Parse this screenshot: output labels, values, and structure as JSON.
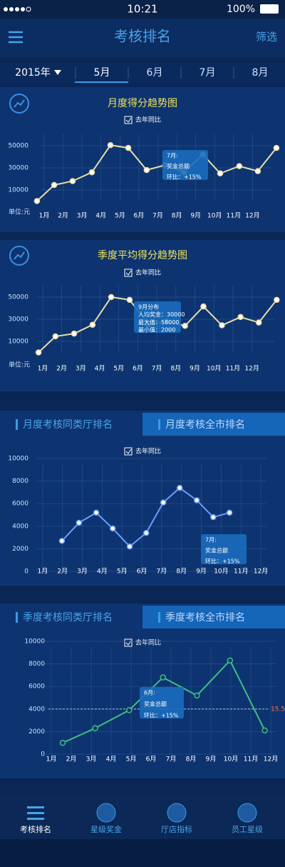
{
  "status_bar": {
    "time": "10:21",
    "battery": "100%"
  },
  "header": {
    "title": "考核排名",
    "action": "筛选"
  },
  "period_tabs": {
    "year": "2015年",
    "months": [
      "5月",
      "6月",
      "7月",
      "8月"
    ]
  },
  "sections": [
    {
      "tabs": [
        "月度考核同类厅排名",
        "月度考核全市排名"
      ]
    },
    {
      "tabs": [
        "季度考核同类厅排名",
        "季度考核全市排名"
      ]
    }
  ],
  "bottom_nav": [
    "考核排名",
    "星级奖金",
    "厅店指标",
    "员工星级"
  ],
  "chart_data": [
    {
      "type": "line",
      "title": "月度得分趋势图",
      "legend": "去年同比",
      "unit": "单位:元",
      "color": "#e9dea6",
      "x": [
        0.62,
        1.53,
        2.5,
        3.52,
        4.5,
        5.44,
        6.41,
        7.39,
        8.37,
        9.38,
        10.29,
        11.3,
        12.28,
        13.26
      ],
      "values": [
        0,
        14500,
        18000,
        26000,
        50500,
        48000,
        28000,
        32500,
        26000,
        42000,
        25000,
        31500,
        27000,
        48000
      ],
      "xlim": [
        0.5,
        13.3
      ],
      "xticks": [
        {
          "value": 1,
          "label": "1月"
        },
        {
          "value": 2,
          "label": "2月"
        },
        {
          "value": 3,
          "label": "3月"
        },
        {
          "value": 4,
          "label": "4月"
        },
        {
          "value": 5,
          "label": "5月"
        },
        {
          "value": 6,
          "label": "6月"
        },
        {
          "value": 7,
          "label": "7月"
        },
        {
          "value": 8,
          "label": "8月"
        },
        {
          "value": 9,
          "label": "9月"
        },
        {
          "value": 10,
          "label": "10月"
        },
        {
          "value": 11,
          "label": "11月"
        },
        {
          "value": 12,
          "label": "12月"
        }
      ],
      "ylim": [
        0,
        60000
      ],
      "yticks": [
        10000,
        30000,
        50000
      ],
      "grid": true,
      "annotation": [
        "7月:",
        "奖金总额",
        "环比：+15%"
      ]
    },
    {
      "type": "line",
      "title": "季度平均得分趋势图",
      "legend": "去年同比",
      "unit": "单位:元",
      "color": "#e9dea6",
      "x": [
        0.78,
        1.67,
        2.65,
        3.62,
        4.6,
        5.57,
        6.54,
        7.5,
        8.48,
        9.45,
        10.42,
        11.4,
        12.36,
        13.3
      ],
      "values": [
        0,
        14500,
        17000,
        25000,
        50000,
        47500,
        25500,
        28000,
        24000,
        41500,
        24500,
        32000,
        27000,
        47500
      ],
      "xlim": [
        0.5,
        13.4
      ],
      "xticks": [
        {
          "value": 1,
          "label": "1月"
        },
        {
          "value": 2,
          "label": "2月"
        },
        {
          "value": 3,
          "label": "3月"
        },
        {
          "value": 4,
          "label": "4月"
        },
        {
          "value": 5,
          "label": "5月"
        },
        {
          "value": 6,
          "label": "6月"
        },
        {
          "value": 7,
          "label": "7月"
        },
        {
          "value": 8,
          "label": "8月"
        },
        {
          "value": 9,
          "label": "9月"
        },
        {
          "value": 10,
          "label": "10月"
        },
        {
          "value": 11,
          "label": "11月"
        },
        {
          "value": 12,
          "label": "12月"
        }
      ],
      "ylim": [
        0,
        60000
      ],
      "yticks": [
        10000,
        30000,
        50000
      ],
      "grid": true,
      "annotation": [
        "9月分布",
        "人均奖金：30000",
        "最大值：58000",
        "最小值：2000"
      ]
    },
    {
      "type": "line",
      "legend": "去年同比",
      "color": "#6f9bff",
      "x": [
        1.97,
        2.83,
        3.7,
        4.53,
        5.39,
        6.22,
        7.08,
        7.91,
        8.77,
        9.6,
        10.42
      ],
      "values": [
        2700,
        4300,
        5200,
        3800,
        2200,
        3400,
        6100,
        7400,
        6300,
        4800,
        5200
      ],
      "xlim": [
        0.5,
        12.5
      ],
      "xticks": [
        {
          "value": 1,
          "label": "1月"
        },
        {
          "value": 2,
          "label": "2月"
        },
        {
          "value": 3,
          "label": "3月"
        },
        {
          "value": 4,
          "label": "4月"
        },
        {
          "value": 5,
          "label": "5月"
        },
        {
          "value": 6,
          "label": "6月"
        },
        {
          "value": 7,
          "label": "7月"
        },
        {
          "value": 8,
          "label": "8月"
        },
        {
          "value": 9,
          "label": "9月"
        },
        {
          "value": 10,
          "label": "10月"
        },
        {
          "value": 11,
          "label": "11月"
        },
        {
          "value": 12,
          "label": "12月"
        }
      ],
      "ylim": [
        0,
        10000
      ],
      "yticks": [
        0,
        2000,
        4000,
        6000,
        8000,
        10000
      ],
      "grid": true,
      "annotation": [
        "7月:",
        "奖金总额",
        "环比：+15%"
      ]
    },
    {
      "type": "line",
      "legend": "去年同比",
      "color": "#3fbf7f",
      "x": [
        1.57,
        3.2,
        4.9,
        6.6,
        8.3,
        9.96,
        11.7
      ],
      "values": [
        1000,
        2300,
        3900,
        6800,
        5200,
        8300,
        2100
      ],
      "xlim": [
        0.5,
        12.5
      ],
      "xticks": [
        {
          "value": 1,
          "label": "1月"
        },
        {
          "value": 2,
          "label": "2月"
        },
        {
          "value": 3,
          "label": "3月"
        },
        {
          "value": 4,
          "label": "4月"
        },
        {
          "value": 5,
          "label": "5月"
        },
        {
          "value": 6,
          "label": "6月"
        },
        {
          "value": 7,
          "label": "7月"
        },
        {
          "value": 8,
          "label": "8月"
        },
        {
          "value": 9,
          "label": "9月"
        },
        {
          "value": 10,
          "label": "10月"
        },
        {
          "value": 11,
          "label": "11月"
        },
        {
          "value": 12,
          "label": "12月"
        }
      ],
      "ylim": [
        0,
        10000
      ],
      "yticks": [
        0,
        2000,
        4000,
        6000,
        8000,
        10000
      ],
      "grid": true,
      "reference": {
        "value": 4000,
        "label": "15.5"
      },
      "annotation": [
        "6月:",
        "奖金总额",
        "环比：+15%"
      ]
    }
  ]
}
